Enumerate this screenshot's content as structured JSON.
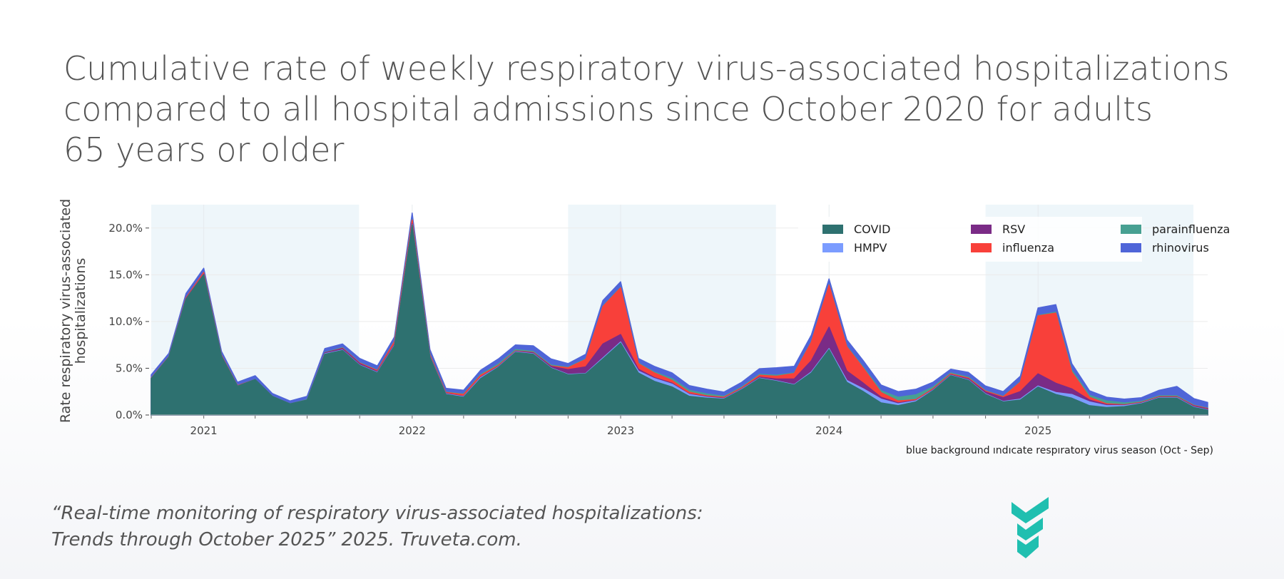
{
  "title_lines": [
    "Cumulative rate of weekly respiratory virus-associated hospitalizations",
    "compared to all hospital admissions since October 2020 for adults",
    "65 years or older"
  ],
  "citation_lines": [
    "“Real-time monitoring of respiratory virus-associated hospitalizations:",
    "Trends through October 2025” 2025. Truveta.com."
  ],
  "logo": {
    "text": "TRUVETA",
    "color": "#20bfb0"
  },
  "chart_data": {
    "type": "area",
    "stacked": true,
    "title": "",
    "ylabel_lines": [
      "Rate respiratory virus-associated",
      "hospitalizations"
    ],
    "xlabel": "",
    "note": "blue background ındıcate respıratory virus season (Oct - Sep)",
    "ylim": [
      0,
      22.5
    ],
    "yticks": [
      0,
      5,
      10,
      15,
      20
    ],
    "ytick_labels": [
      "0.0%",
      "5.0%",
      "10.0%",
      "15.0%",
      "20.0%"
    ],
    "xlim": [
      "2020-10-01",
      "2025-10-25"
    ],
    "xticks": [
      "2021-01-01",
      "2022-01-01",
      "2023-01-01",
      "2024-01-01",
      "2025-01-01"
    ],
    "xtick_labels": [
      "2021",
      "2022",
      "2023",
      "2024",
      "2025"
    ],
    "grid": true,
    "legend_placement": "top-right",
    "season_shading": {
      "color": "#eef6fa",
      "ranges": [
        [
          "2020-10-01",
          "2021-09-30"
        ],
        [
          "2022-10-01",
          "2023-09-30"
        ],
        [
          "2024-10-01",
          "2025-09-30"
        ]
      ]
    },
    "x": [
      "2020-10-01",
      "2020-11-01",
      "2020-12-01",
      "2021-01-01",
      "2021-02-01",
      "2021-03-01",
      "2021-04-01",
      "2021-05-01",
      "2021-06-01",
      "2021-07-01",
      "2021-08-01",
      "2021-09-01",
      "2021-10-01",
      "2021-11-01",
      "2021-12-01",
      "2022-01-01",
      "2022-02-01",
      "2022-03-01",
      "2022-04-01",
      "2022-05-01",
      "2022-06-01",
      "2022-07-01",
      "2022-08-01",
      "2022-09-01",
      "2022-10-01",
      "2022-11-01",
      "2022-12-01",
      "2023-01-01",
      "2023-02-01",
      "2023-03-01",
      "2023-04-01",
      "2023-05-01",
      "2023-06-01",
      "2023-07-01",
      "2023-08-01",
      "2023-09-01",
      "2023-10-01",
      "2023-11-01",
      "2023-12-01",
      "2024-01-01",
      "2024-02-01",
      "2024-03-01",
      "2024-04-01",
      "2024-05-01",
      "2024-06-01",
      "2024-07-01",
      "2024-08-01",
      "2024-09-01",
      "2024-10-01",
      "2024-11-01",
      "2024-12-01",
      "2025-01-01",
      "2025-02-01",
      "2025-03-01",
      "2025-04-01",
      "2025-05-01",
      "2025-06-01",
      "2025-07-01",
      "2025-08-01",
      "2025-09-01",
      "2025-10-01",
      "2025-10-25"
    ],
    "series": [
      {
        "name": "COVID",
        "color": "#2e7170",
        "values": [
          3.9,
          6.2,
          12.4,
          15.0,
          6.3,
          3.1,
          3.8,
          2.0,
          1.2,
          1.6,
          6.5,
          6.9,
          5.3,
          4.5,
          7.4,
          20.3,
          6.2,
          2.2,
          1.9,
          3.9,
          5.1,
          6.7,
          6.5,
          5.0,
          4.3,
          4.4,
          6.0,
          7.7,
          4.5,
          3.6,
          3.0,
          2.0,
          1.8,
          1.7,
          2.7,
          3.9,
          3.6,
          3.2,
          4.5,
          7.0,
          3.5,
          2.5,
          1.3,
          1.0,
          1.4,
          2.6,
          4.2,
          3.7,
          2.2,
          1.4,
          1.6,
          3.0,
          2.2,
          1.8,
          1.0,
          0.8,
          0.9,
          1.2,
          1.8,
          1.8,
          0.8,
          0.5
        ]
      },
      {
        "name": "HMPV",
        "color": "#7b9cff",
        "values": [
          0,
          0,
          0,
          0,
          0,
          0,
          0,
          0,
          0,
          0,
          0.05,
          0.05,
          0.05,
          0.05,
          0.05,
          0.05,
          0.05,
          0.05,
          0.05,
          0.1,
          0.05,
          0.05,
          0.05,
          0.05,
          0.05,
          0.05,
          0.1,
          0.1,
          0.2,
          0.3,
          0.3,
          0.2,
          0.1,
          0.05,
          0.05,
          0.05,
          0.05,
          0.05,
          0.1,
          0.1,
          0.2,
          0.3,
          0.4,
          0.2,
          0.1,
          0.05,
          0.05,
          0.05,
          0.05,
          0.05,
          0.1,
          0.1,
          0.2,
          0.4,
          0.4,
          0.2,
          0.1,
          0.05,
          0.05,
          0.05,
          0.05,
          0.05
        ]
      },
      {
        "name": "RSV",
        "color": "#7a2b86",
        "values": [
          0,
          0,
          0.05,
          0.05,
          0,
          0,
          0,
          0,
          0,
          0,
          0.1,
          0.15,
          0.15,
          0.1,
          0.1,
          0.1,
          0.05,
          0.05,
          0.05,
          0.05,
          0.05,
          0.05,
          0.1,
          0.15,
          0.5,
          0.7,
          1.5,
          0.8,
          0.2,
          0.1,
          0.1,
          0.05,
          0.05,
          0.05,
          0.05,
          0.1,
          0.2,
          0.6,
          1.2,
          2.3,
          1.0,
          0.6,
          0.2,
          0.1,
          0.05,
          0.05,
          0.05,
          0.1,
          0.2,
          0.4,
          0.8,
          1.3,
          1.0,
          0.6,
          0.2,
          0.1,
          0.05,
          0.05,
          0.05,
          0.05,
          0.1,
          0.1
        ]
      },
      {
        "name": "influenza",
        "color": "#f8403a",
        "values": [
          0.05,
          0.05,
          0.1,
          0.2,
          0.1,
          0.05,
          0,
          0,
          0,
          0,
          0,
          0.05,
          0.05,
          0.1,
          0.3,
          0.4,
          0.15,
          0.1,
          0.2,
          0.2,
          0.1,
          0.05,
          0.05,
          0.05,
          0.2,
          0.8,
          4.0,
          5.0,
          0.6,
          0.5,
          0.3,
          0.2,
          0.1,
          0.1,
          0.1,
          0.2,
          0.3,
          0.6,
          2.0,
          4.5,
          2.6,
          1.6,
          0.5,
          0.2,
          0.1,
          0.1,
          0.1,
          0.1,
          0.1,
          0.1,
          1.0,
          6.2,
          7.5,
          1.8,
          0.3,
          0.1,
          0.05,
          0.05,
          0.05,
          0.05,
          0.05,
          0.05
        ]
      },
      {
        "name": "parainfluenza",
        "color": "#47a092",
        "values": [
          0,
          0,
          0,
          0,
          0,
          0,
          0,
          0,
          0,
          0.05,
          0.05,
          0.05,
          0.05,
          0.05,
          0.05,
          0.05,
          0.05,
          0.05,
          0.05,
          0.1,
          0.15,
          0.15,
          0.1,
          0.1,
          0.05,
          0.05,
          0.05,
          0.05,
          0.05,
          0.1,
          0.2,
          0.2,
          0.2,
          0.1,
          0.1,
          0.1,
          0.1,
          0.05,
          0.05,
          0.05,
          0.05,
          0.1,
          0.2,
          0.4,
          0.5,
          0.2,
          0.1,
          0.1,
          0.05,
          0.05,
          0.05,
          0.05,
          0.1,
          0.2,
          0.2,
          0.3,
          0.2,
          0.1,
          0.1,
          0.1,
          0.05,
          0.05
        ]
      },
      {
        "name": "rhinovirus",
        "color": "#4f65d8",
        "values": [
          0.35,
          0.35,
          0.45,
          0.45,
          0.4,
          0.35,
          0.4,
          0.3,
          0.3,
          0.35,
          0.4,
          0.4,
          0.45,
          0.45,
          0.45,
          0.7,
          0.5,
          0.4,
          0.4,
          0.45,
          0.55,
          0.5,
          0.6,
          0.65,
          0.4,
          0.5,
          0.6,
          0.6,
          0.5,
          0.6,
          0.6,
          0.5,
          0.5,
          0.45,
          0.5,
          0.6,
          0.8,
          0.7,
          0.7,
          0.6,
          0.7,
          0.7,
          0.6,
          0.6,
          0.6,
          0.5,
          0.4,
          0.5,
          0.5,
          0.5,
          0.6,
          0.8,
          0.8,
          0.7,
          0.5,
          0.4,
          0.4,
          0.4,
          0.6,
          1.0,
          0.7,
          0.6
        ]
      }
    ],
    "legend_order": [
      "COVID",
      "RSV",
      "parainfluenza",
      "HMPV",
      "influenza",
      "rhinovirus"
    ]
  }
}
